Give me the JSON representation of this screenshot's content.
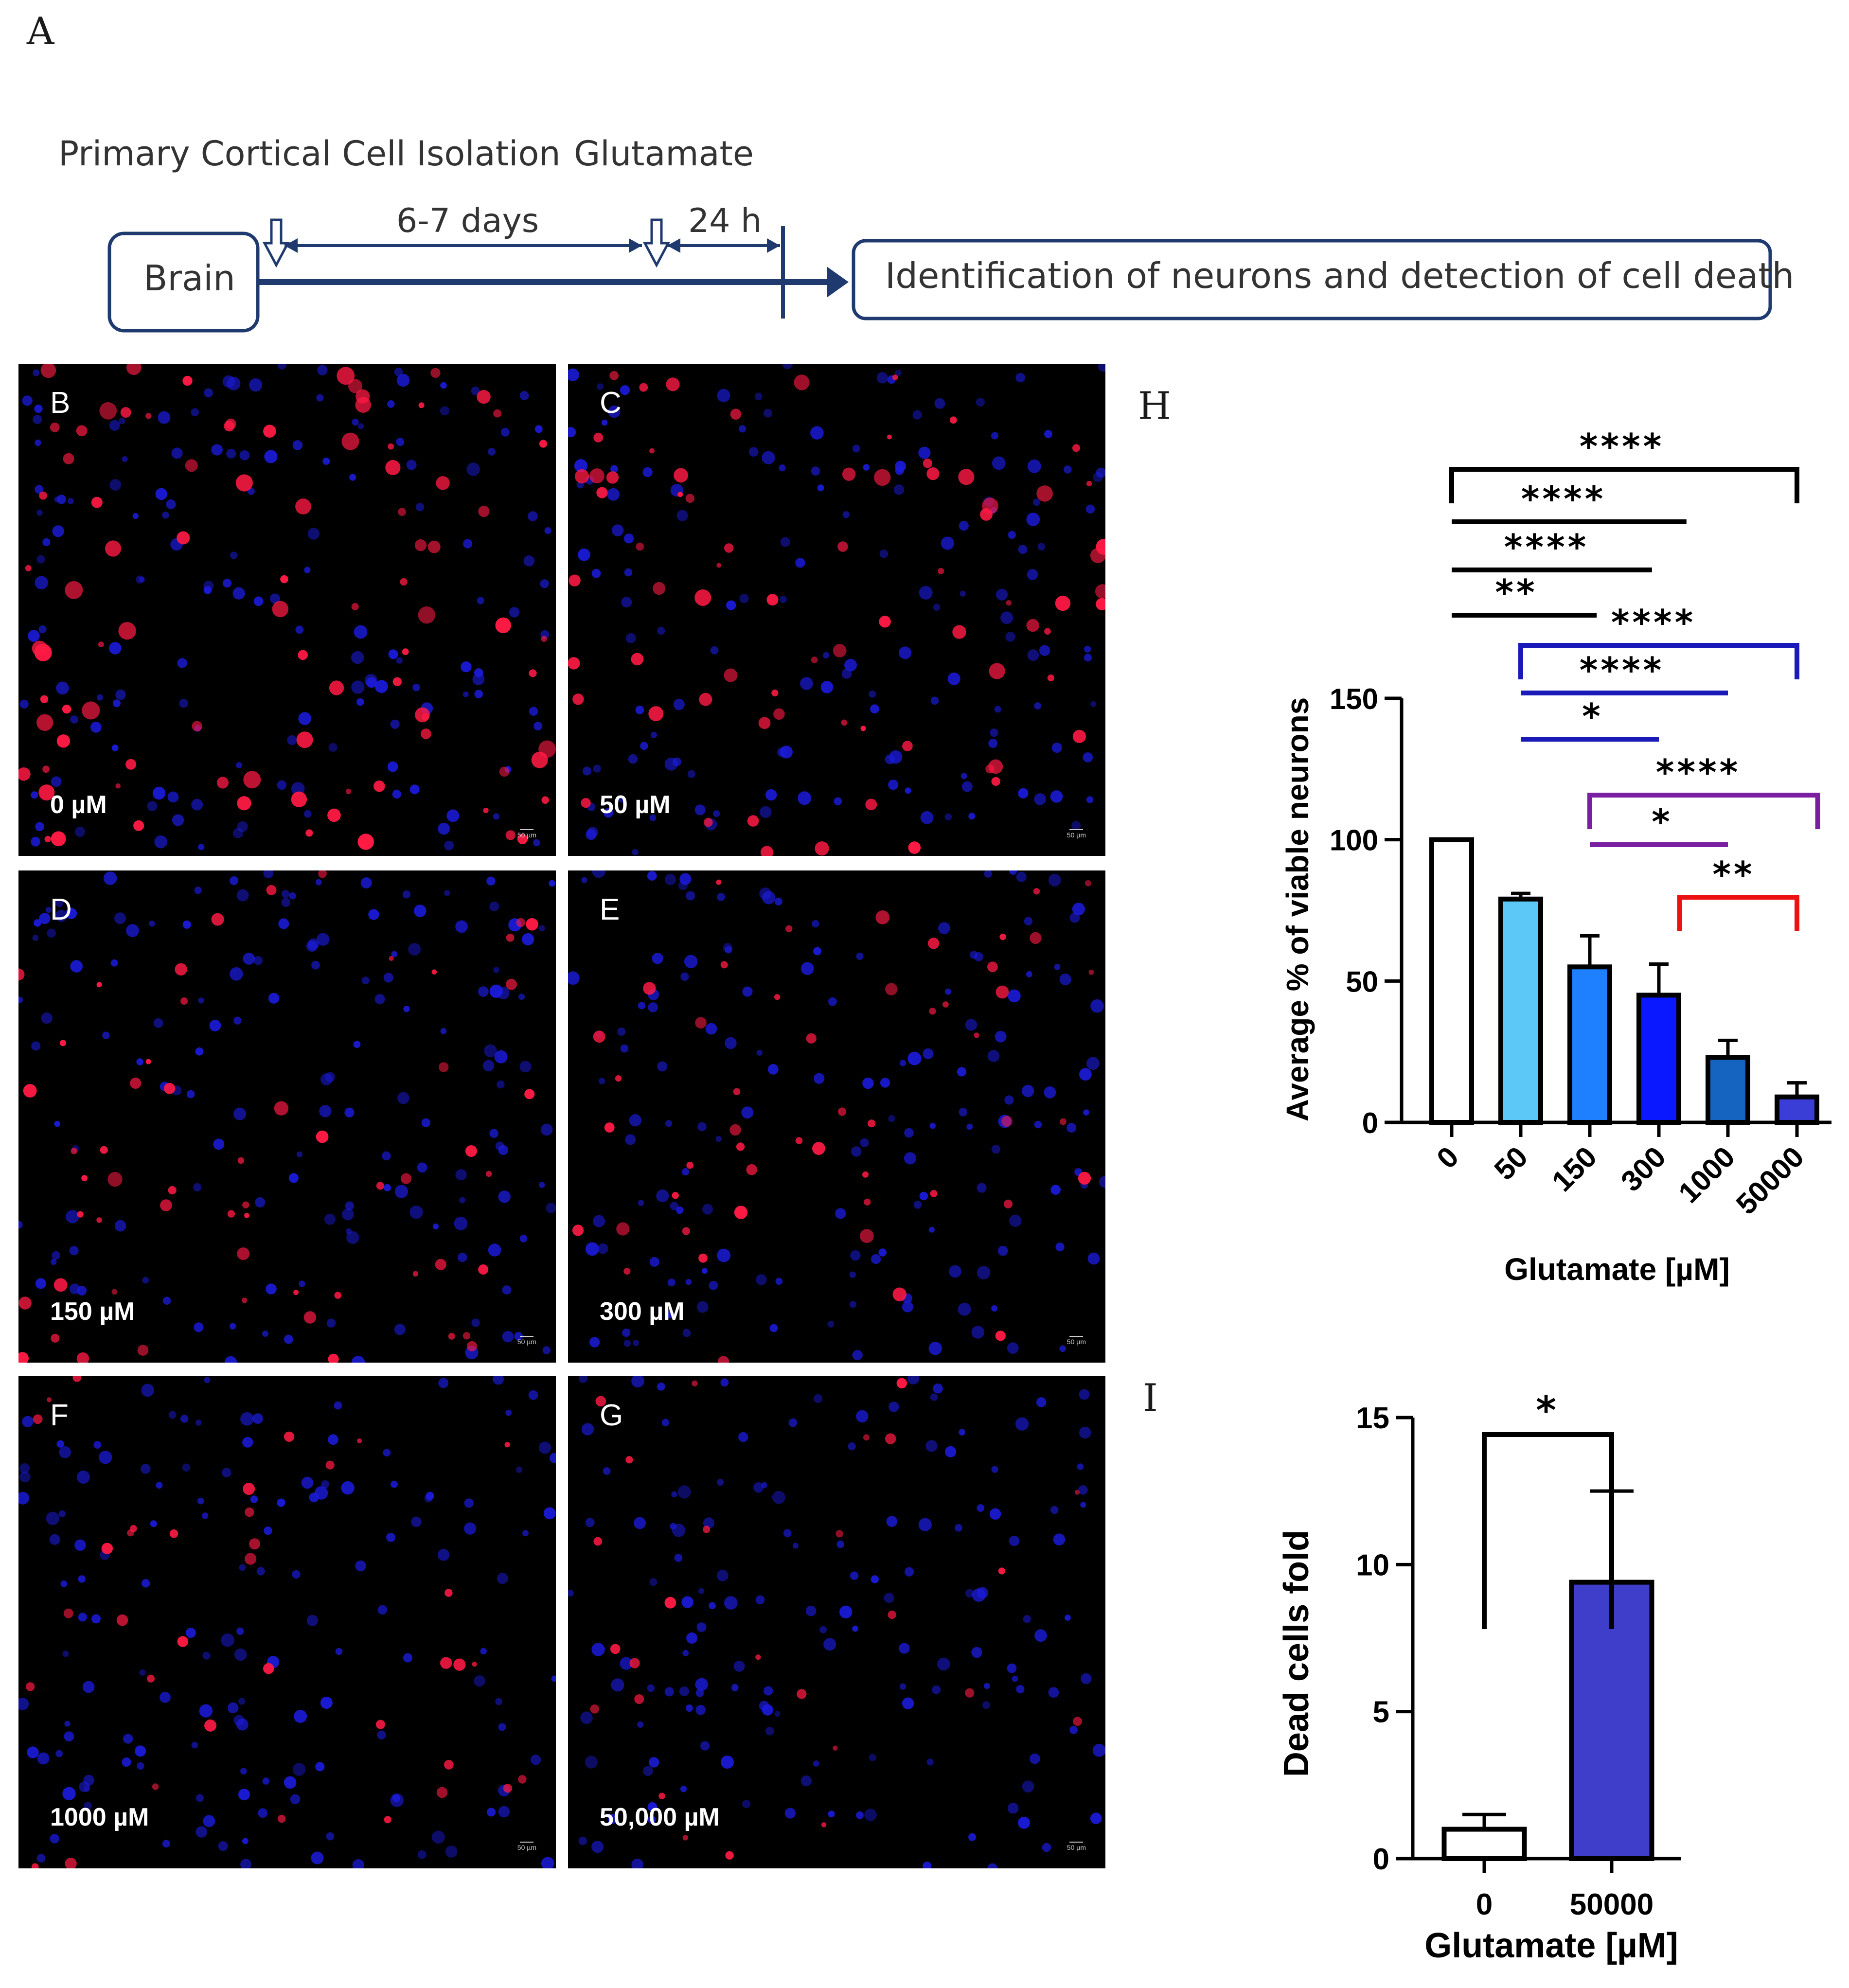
{
  "panel_letters": {
    "A": "A",
    "H": "H",
    "I": "I"
  },
  "timeline": {
    "step1_label": "Primary Cortical Cell Isolation",
    "step2_label": "Glutamate",
    "interval1": "6-7 days",
    "interval2": "24 h",
    "start_box": "Brain",
    "end_box": "Identification of neurons and detection of cell death",
    "colors": {
      "line": "#1f3a6e"
    }
  },
  "micrographs": [
    {
      "letter": "B",
      "concentration": "0 µM",
      "scale": "50 µm",
      "density": 1.0
    },
    {
      "letter": "C",
      "concentration": "50 µM",
      "scale": "50 µm",
      "density": 0.78
    },
    {
      "letter": "D",
      "concentration": "150 µM",
      "scale": "50 µm",
      "density": 0.55
    },
    {
      "letter": "E",
      "concentration": "300 µM",
      "scale": "50 µm",
      "density": 0.45
    },
    {
      "letter": "F",
      "concentration": "1000 µM",
      "scale": "50 µm",
      "density": 0.25
    },
    {
      "letter": "G",
      "concentration": "50,000 µM",
      "scale": "50 µm",
      "density": 0.12
    }
  ],
  "chart_data": [
    {
      "panel": "H",
      "type": "bar",
      "categories": [
        "0",
        "50",
        "150",
        "300",
        "1000",
        "50000"
      ],
      "values": [
        100,
        79,
        55,
        45,
        23,
        9
      ],
      "errors": [
        0,
        2,
        11,
        11,
        6,
        5
      ],
      "colors": [
        "#ffffff",
        "#5bc8f7",
        "#1e7fff",
        "#0a18ff",
        "#1565c0",
        "#3a3ed6"
      ],
      "xlabel": "Glutamate [µM]",
      "ylabel": "Average % of viable neurons",
      "yticks": [
        0,
        50,
        100,
        150
      ],
      "ylim": [
        0,
        150
      ],
      "significance": [
        {
          "from": 0,
          "to": 5,
          "label": "****",
          "color": "#000000",
          "style": "bracket"
        },
        {
          "from": 0,
          "to": 3.4,
          "label": "****",
          "color": "#000000",
          "style": "line"
        },
        {
          "from": 0,
          "to": 2.9,
          "label": "****",
          "color": "#000000",
          "style": "line"
        },
        {
          "from": 0,
          "to": 2.1,
          "label": "**",
          "color": "#000000",
          "style": "line"
        },
        {
          "from": 1,
          "to": 5,
          "label": "****",
          "color": "#1a1ab8",
          "style": "bracket"
        },
        {
          "from": 1,
          "to": 4,
          "label": "****",
          "color": "#1a1ab8",
          "style": "line"
        },
        {
          "from": 1,
          "to": 3,
          "label": "*",
          "color": "#1a1ab8",
          "style": "line"
        },
        {
          "from": 2,
          "to": 5.3,
          "label": "****",
          "color": "#7b1fa2",
          "style": "bracket"
        },
        {
          "from": 2,
          "to": 4,
          "label": "*",
          "color": "#7b1fa2",
          "style": "line"
        },
        {
          "from": 3.3,
          "to": 5,
          "label": "**",
          "color": "#ee1111",
          "style": "bracket"
        }
      ]
    },
    {
      "panel": "I",
      "type": "bar",
      "categories": [
        "0",
        "50000"
      ],
      "values": [
        1.0,
        9.4
      ],
      "errors": [
        0.5,
        3.1
      ],
      "colors": [
        "#ffffff",
        "#3e3ecb"
      ],
      "xlabel": "Glutamate [µM]",
      "ylabel": "Dead cells fold",
      "yticks": [
        0,
        5,
        10,
        15
      ],
      "ylim": [
        0,
        15
      ],
      "significance": [
        {
          "from": 0,
          "to": 1,
          "label": "*",
          "color": "#000000",
          "style": "bracket"
        }
      ]
    }
  ]
}
